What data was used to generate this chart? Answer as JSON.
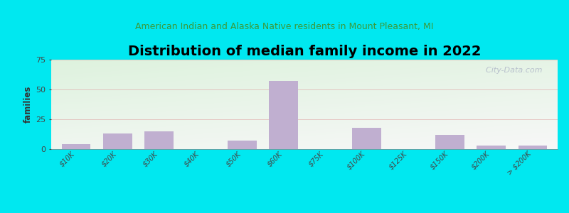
{
  "title": "Distribution of median family income in 2022",
  "subtitle": "American Indian and Alaska Native residents in Mount Pleasant, MI",
  "categories": [
    "$10K",
    "$20K",
    "$30K",
    "$40K",
    "$50K",
    "$60K",
    "$75K",
    "$100K",
    "$125K",
    "$150K",
    "$200K",
    "> $200K"
  ],
  "values": [
    4,
    13,
    15,
    0,
    7,
    57,
    0,
    18,
    0,
    12,
    3,
    3
  ],
  "bar_color": "#c0afd0",
  "outer_bg": "#00e8f0",
  "ylabel": "families",
  "ylim": [
    0,
    75
  ],
  "yticks": [
    0,
    25,
    50,
    75
  ],
  "title_fontsize": 14,
  "subtitle_fontsize": 9,
  "subtitle_color": "#3a9a3a",
  "watermark": "  City-Data.com"
}
